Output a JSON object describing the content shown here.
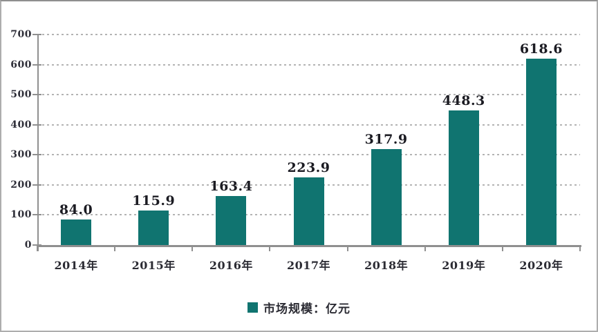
{
  "chart_data": {
    "type": "bar",
    "categories": [
      "2014年",
      "2015年",
      "2016年",
      "2017年",
      "2018年",
      "2019年",
      "2020年"
    ],
    "values": [
      84.0,
      115.9,
      163.4,
      223.9,
      317.9,
      448.3,
      618.6
    ],
    "value_labels": [
      "84.0",
      "115.9",
      "163.4",
      "223.9",
      "317.9",
      "448.3",
      "618.6"
    ],
    "ylim": [
      0,
      700
    ],
    "ytick_interval": 100,
    "ytick_labels": [
      "0",
      "100",
      "200",
      "300",
      "400",
      "500",
      "600",
      "700"
    ],
    "grid": "horizontal-dashed",
    "bar_color": "#107470",
    "legend": {
      "label": "市场规模：亿元",
      "marker": "square",
      "position": "bottom-center"
    }
  },
  "colors": {
    "bar": "#107470",
    "axis_line": "#8f8f8f",
    "gridline": "#b3b3b3",
    "value_label_text": "#1b1b22",
    "tick_label_text": "#2e2e38",
    "background": "#ffffff",
    "frame_border": "#adadad"
  }
}
